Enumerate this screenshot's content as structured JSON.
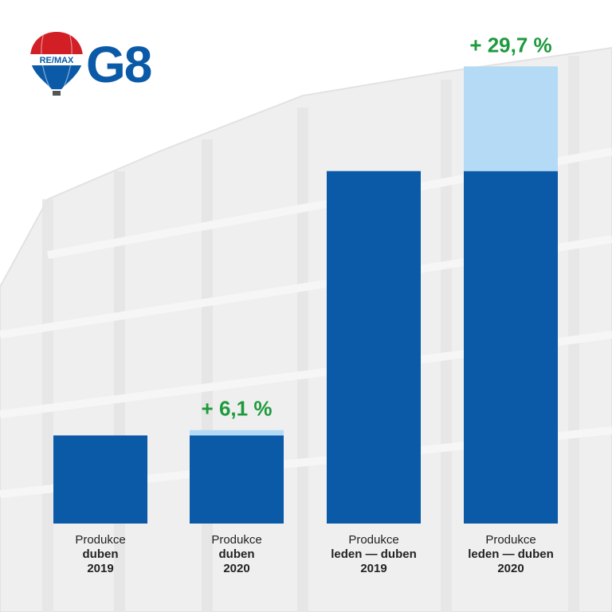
{
  "brand": {
    "balloon_text": "RE/MAX",
    "office": "G8",
    "colors": {
      "red": "#d21f26",
      "blue": "#0a5aa8",
      "white": "#ffffff"
    }
  },
  "colors": {
    "bar_base": "#0a5aa8",
    "bar_increase": "#b4daf6",
    "growth_label": "#1e9a3d",
    "background_building": "#e8e8e8"
  },
  "chart_data": {
    "type": "bar",
    "stacked": true,
    "categories": [
      {
        "line1": "Produkce",
        "line2": "duben",
        "line3": "2019"
      },
      {
        "line1": "Produkce",
        "line2": "duben",
        "line3": "2020"
      },
      {
        "line1": "Produkce",
        "line2": "leden — duben",
        "line3": "2019"
      },
      {
        "line1": "Produkce",
        "line2": "leden — duben",
        "line3": "2020"
      }
    ],
    "series": [
      {
        "values": [
          100,
          100,
          400,
          400
        ]
      },
      {
        "values": [
          0,
          6.1,
          0,
          118.8
        ]
      }
    ],
    "annotations": [
      "",
      "+ 6,1 %",
      "",
      "+ 29,7 %"
    ],
    "ylim": [
      0,
      520
    ],
    "axes_visible": false,
    "grid": false,
    "legend": "none"
  }
}
